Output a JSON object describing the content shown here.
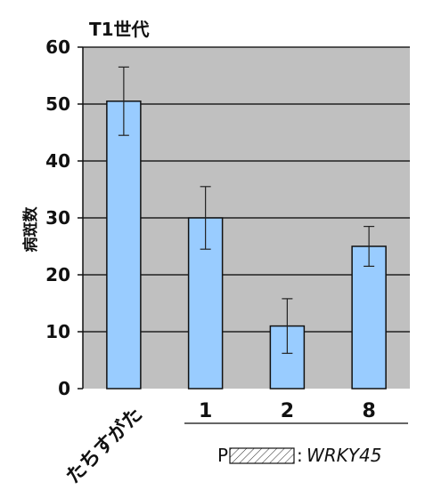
{
  "chart_data": {
    "type": "bar",
    "title": "T1世代",
    "ylabel": "病斑数",
    "xlabel": "",
    "ylim": [
      0,
      60
    ],
    "yticks": [
      0,
      10,
      20,
      30,
      40,
      50,
      60
    ],
    "grid": true,
    "categories": [
      "たちすがた",
      "1",
      "2",
      "8"
    ],
    "values": [
      50.5,
      30,
      11,
      25
    ],
    "errors": [
      6,
      5.5,
      4.8,
      3.5
    ],
    "colors": {
      "bar": "#99ccff",
      "plot_bg": "#c0c0c0",
      "grid": "#000000"
    },
    "legend": {
      "prefix": "P",
      "separator": ":",
      "gene": "WRKY45"
    }
  }
}
